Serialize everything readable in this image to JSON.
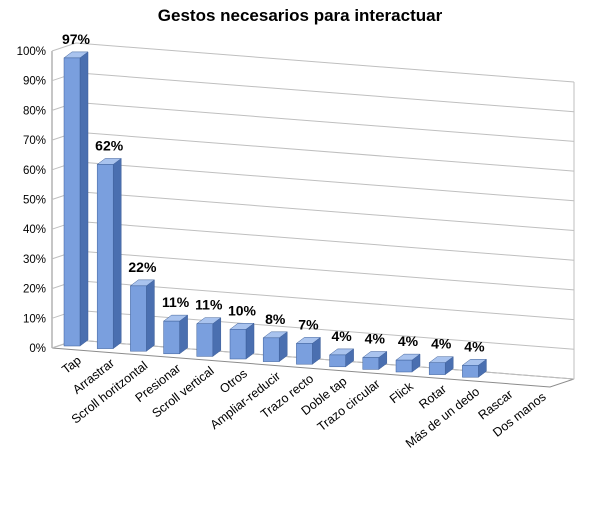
{
  "chart_data": {
    "type": "bar",
    "title": "Gestos necesarios para interactuar",
    "xlabel": "",
    "ylabel": "",
    "ylim": [
      0,
      100
    ],
    "yticks": [
      "0%",
      "10%",
      "20%",
      "30%",
      "40%",
      "50%",
      "60%",
      "70%",
      "80%",
      "90%",
      "100%"
    ],
    "categories": [
      "Tap",
      "Arrastrar",
      "Scroll horitzontal",
      "Presionar",
      "Scroll vertical",
      "Otros",
      "Ampliar-reducir",
      "Trazo recto",
      "Doble tap",
      "Trazo circular",
      "Flick",
      "Rotar",
      "Más de un dedo",
      "Rascar",
      "Dos manos"
    ],
    "values": [
      97,
      62,
      22,
      11,
      11,
      10,
      8,
      7,
      4,
      4,
      4,
      4,
      4,
      0,
      0
    ],
    "data_labels": [
      "97%",
      "62%",
      "22%",
      "11%",
      "11%",
      "10%",
      "8%",
      "7%",
      "4%",
      "4%",
      "4%",
      "4%",
      "4%",
      "",
      ""
    ],
    "grid": true,
    "style": "3d-column",
    "colors": {
      "bar_front": "#7a9fde",
      "bar_side": "#4a6fb0",
      "bar_top": "#a9c3ee"
    }
  }
}
